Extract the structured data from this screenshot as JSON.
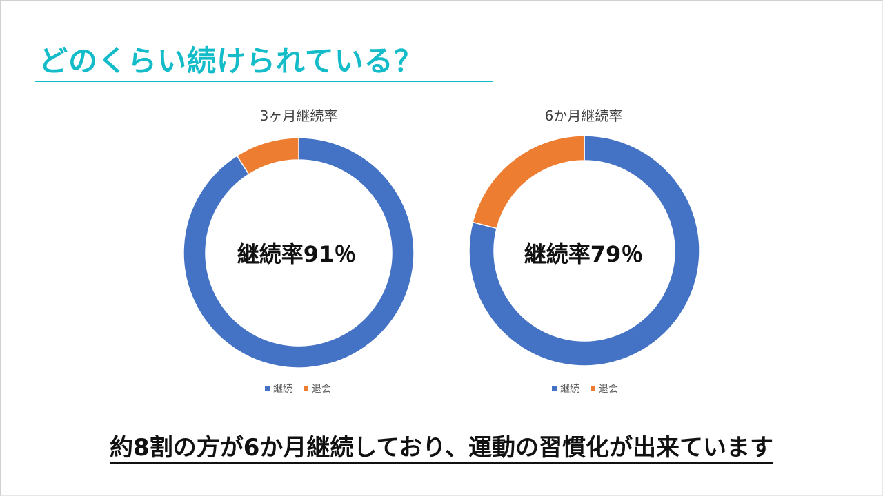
{
  "slide": {
    "title": "どのくらい続けられている？",
    "footer": "約8割の方が6か月継続しており、運動の習慣化が出来ています",
    "colors": {
      "title": "#13bcc8",
      "continue": "#4472c4",
      "withdraw": "#ed7d31"
    }
  },
  "charts": [
    {
      "title": "3ヶ月継続率",
      "center_label": "継続率91％",
      "legend": [
        {
          "label": "継続",
          "color": "#4472c4"
        },
        {
          "label": "退会",
          "color": "#ed7d31"
        }
      ]
    },
    {
      "title": "6か月継続率",
      "center_label": "継続率79％",
      "legend": [
        {
          "label": "継続",
          "color": "#4472c4"
        },
        {
          "label": "退会",
          "color": "#ed7d31"
        }
      ]
    }
  ],
  "chart_data": [
    {
      "type": "pie",
      "subtype": "donut",
      "title": "3ヶ月継続率",
      "categories": [
        "継続",
        "退会"
      ],
      "values": [
        91,
        9
      ],
      "unit": "%",
      "center_annotation": "継続率91％",
      "legend_position": "bottom"
    },
    {
      "type": "pie",
      "subtype": "donut",
      "title": "6か月継続率",
      "categories": [
        "継続",
        "退会"
      ],
      "values": [
        79,
        21
      ],
      "unit": "%",
      "center_annotation": "継続率79％",
      "legend_position": "bottom"
    }
  ]
}
